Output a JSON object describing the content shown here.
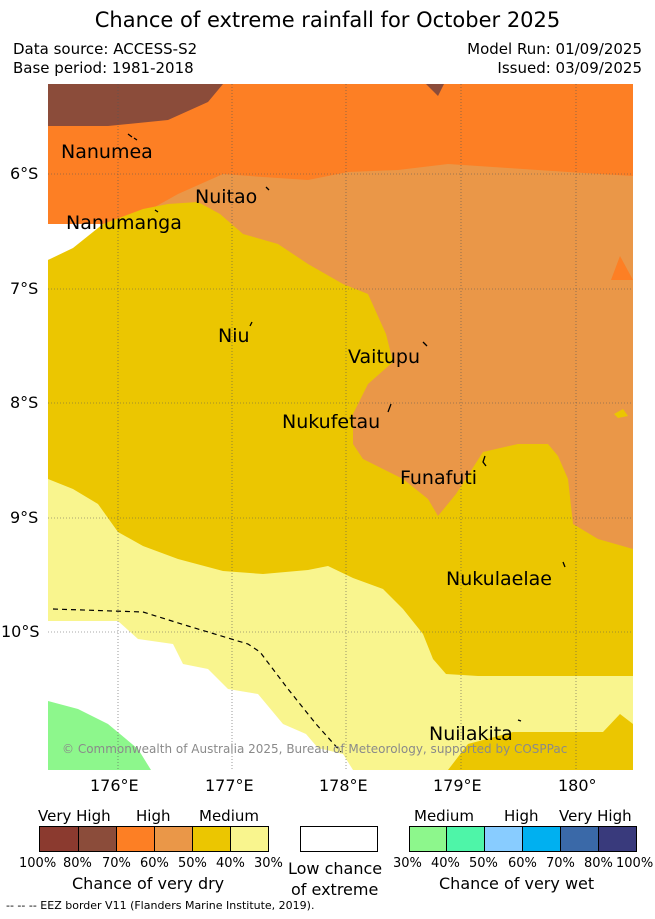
{
  "header": {
    "title": "Chance of extreme rainfall for October 2025",
    "data_source": "Data source: ACCESS-S2",
    "base_period": "Base period: 1981-2018",
    "model_run": "Model Run: 01/09/2025",
    "issued": "Issued: 03/09/2025"
  },
  "map": {
    "lat_labels": [
      "6°S",
      "7°S",
      "8°S",
      "9°S",
      "10°S"
    ],
    "lon_labels": [
      "176°E",
      "177°E",
      "178°E",
      "179°E",
      "180°"
    ],
    "places": [
      "Nanumea",
      "Nuitao",
      "Nanumanga",
      "Niu",
      "Vaitupu",
      "Nukufetau",
      "Funafuti",
      "Nukulaelae",
      "Nuilakita"
    ],
    "copyright": "© Commonwealth of Australia 2025, Bureau of Meteorology, supported by COSPPac",
    "colors": {
      "dry_very_high_100": "#8b3a2f",
      "dry_very_high_80": "#8b4c3a",
      "dry_high_70": "#fd7f24",
      "dry_high_60": "#ea9748",
      "dry_medium_50": "#ebc601",
      "dry_medium_40": "#f9f58e",
      "low": "#ffffff",
      "wet_medium_30": "#8df78c",
      "wet_medium_40": "#4ef5a8",
      "wet_high_50": "#88ccff",
      "wet_high_60": "#00b0f0",
      "wet_very_high_70": "#3a69a8",
      "wet_very_high_80": "#393a7c"
    }
  },
  "legend": {
    "dry": {
      "groups": [
        "Very High",
        "High",
        "Medium"
      ],
      "ticks": [
        "100%",
        "80%",
        "70%",
        "60%",
        "50%",
        "40%",
        "30%"
      ],
      "caption": "Chance of very dry"
    },
    "low": {
      "caption_line1": "Low chance",
      "caption_line2": "of extreme"
    },
    "wet": {
      "groups": [
        "Medium",
        "High",
        "Very High"
      ],
      "ticks": [
        "30%",
        "40%",
        "50%",
        "60%",
        "70%",
        "80%",
        "100%"
      ],
      "caption": "Chance of very wet"
    },
    "eez": "-- -- -- EEZ border V11 (Flanders Marine Institute, 2019)."
  }
}
